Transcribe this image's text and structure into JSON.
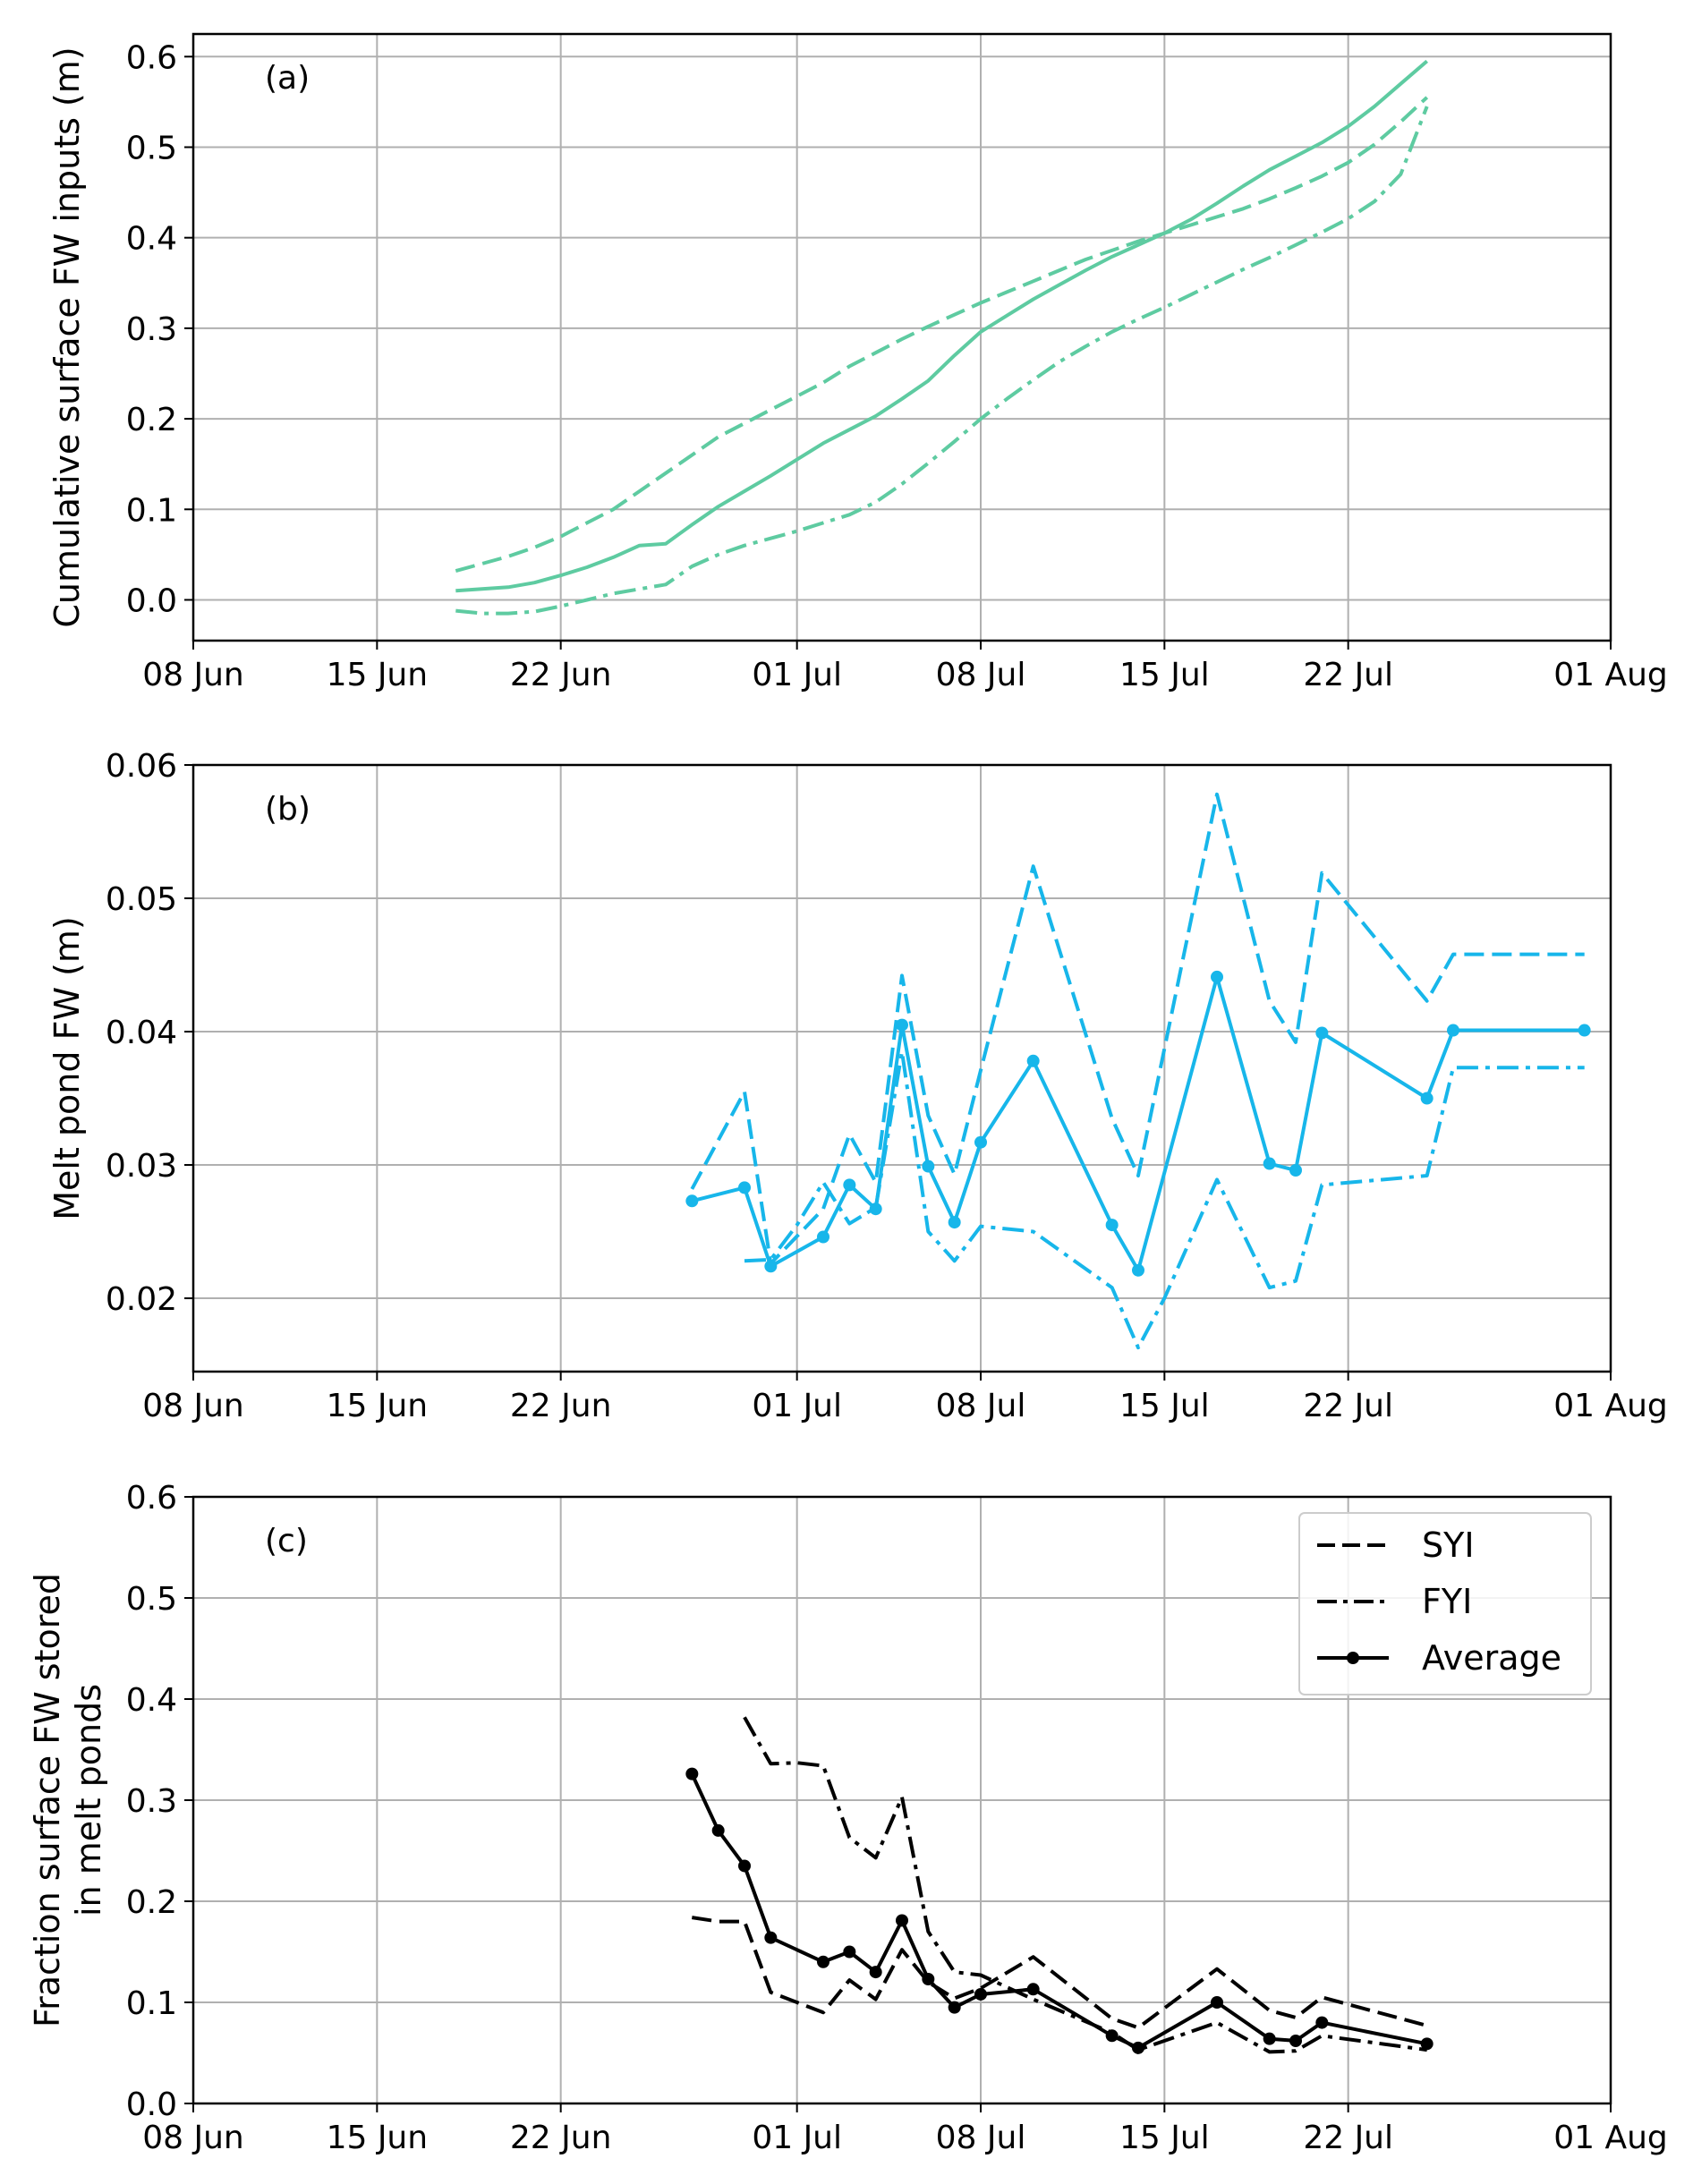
{
  "x_ticks": [
    {
      "date": "2019-06-08",
      "label": "08 Jun"
    },
    {
      "date": "2019-06-15",
      "label": "15 Jun"
    },
    {
      "date": "2019-06-22",
      "label": "22 Jun"
    },
    {
      "date": "2019-07-01",
      "label": "01 Jul"
    },
    {
      "date": "2019-07-08",
      "label": "08 Jul"
    },
    {
      "date": "2019-07-15",
      "label": "15 Jul"
    },
    {
      "date": "2019-07-22",
      "label": "22 Jul"
    },
    {
      "date": "2019-08-01",
      "label": "01 Aug"
    }
  ],
  "colors": {
    "panel_a": "#5ecba1",
    "panel_b": "#17b6ea",
    "panel_c": "#000000",
    "grid": "#b0b0b0"
  },
  "legend": {
    "placement": "top-right",
    "entries": [
      {
        "label": "SYI",
        "style": "dashed"
      },
      {
        "label": "FYI",
        "style": "dashdot"
      },
      {
        "label": "Average",
        "style": "solid-marker"
      }
    ]
  },
  "chart_data": [
    {
      "type": "line",
      "panel_label": "(a)",
      "ylabel": "Cumulative surface FW inputs (m)",
      "xlim": [
        "2019-06-08",
        "2019-08-01"
      ],
      "ylim": [
        -0.045,
        0.625
      ],
      "yticks": [
        0.0,
        0.1,
        0.2,
        0.3,
        0.4,
        0.5,
        0.6
      ],
      "ytick_labels": [
        "0.0",
        "0.1",
        "0.2",
        "0.3",
        "0.4",
        "0.5",
        "0.6"
      ],
      "grid": true,
      "series": [
        {
          "style": "dashed",
          "markers": false,
          "x": [
            "2019-06-18",
            "2019-06-19",
            "2019-06-20",
            "2019-06-21",
            "2019-06-22",
            "2019-06-23",
            "2019-06-24",
            "2019-06-25",
            "2019-06-26",
            "2019-06-27",
            "2019-06-28",
            "2019-06-29",
            "2019-06-30",
            "2019-07-01",
            "2019-07-02",
            "2019-07-03",
            "2019-07-04",
            "2019-07-05",
            "2019-07-06",
            "2019-07-07",
            "2019-07-08",
            "2019-07-09",
            "2019-07-10",
            "2019-07-11",
            "2019-07-12",
            "2019-07-13",
            "2019-07-14",
            "2019-07-15",
            "2019-07-16",
            "2019-07-17",
            "2019-07-18",
            "2019-07-19",
            "2019-07-20",
            "2019-07-21",
            "2019-07-22",
            "2019-07-23",
            "2019-07-24",
            "2019-07-25"
          ],
          "y": [
            0.032,
            0.04,
            0.048,
            0.058,
            0.07,
            0.085,
            0.1,
            0.12,
            0.14,
            0.16,
            0.18,
            0.195,
            0.21,
            0.225,
            0.24,
            0.258,
            0.273,
            0.288,
            0.302,
            0.315,
            0.328,
            0.34,
            0.352,
            0.364,
            0.376,
            0.386,
            0.396,
            0.405,
            0.414,
            0.423,
            0.432,
            0.443,
            0.455,
            0.468,
            0.483,
            0.503,
            0.528,
            0.555
          ]
        },
        {
          "style": "solid",
          "markers": false,
          "x": [
            "2019-06-18",
            "2019-06-19",
            "2019-06-20",
            "2019-06-21",
            "2019-06-22",
            "2019-06-23",
            "2019-06-24",
            "2019-06-25",
            "2019-06-26",
            "2019-06-27",
            "2019-06-28",
            "2019-06-29",
            "2019-06-30",
            "2019-07-01",
            "2019-07-02",
            "2019-07-03",
            "2019-07-04",
            "2019-07-05",
            "2019-07-06",
            "2019-07-07",
            "2019-07-08",
            "2019-07-09",
            "2019-07-10",
            "2019-07-11",
            "2019-07-12",
            "2019-07-13",
            "2019-07-14",
            "2019-07-15",
            "2019-07-16",
            "2019-07-17",
            "2019-07-18",
            "2019-07-19",
            "2019-07-20",
            "2019-07-21",
            "2019-07-22",
            "2019-07-23",
            "2019-07-24",
            "2019-07-25"
          ],
          "y": [
            0.01,
            0.012,
            0.014,
            0.019,
            0.027,
            0.036,
            0.047,
            0.06,
            0.062,
            0.083,
            0.103,
            0.12,
            0.137,
            0.155,
            0.173,
            0.188,
            0.203,
            0.222,
            0.242,
            0.27,
            0.296,
            0.314,
            0.332,
            0.348,
            0.364,
            0.379,
            0.392,
            0.405,
            0.42,
            0.438,
            0.457,
            0.475,
            0.49,
            0.505,
            0.523,
            0.545,
            0.57,
            0.595
          ]
        },
        {
          "style": "dashdot",
          "markers": false,
          "x": [
            "2019-06-18",
            "2019-06-19",
            "2019-06-20",
            "2019-06-21",
            "2019-06-22",
            "2019-06-23",
            "2019-06-24",
            "2019-06-25",
            "2019-06-26",
            "2019-06-27",
            "2019-06-28",
            "2019-06-29",
            "2019-06-30",
            "2019-07-01",
            "2019-07-02",
            "2019-07-03",
            "2019-07-04",
            "2019-07-05",
            "2019-07-06",
            "2019-07-07",
            "2019-07-08",
            "2019-07-09",
            "2019-07-10",
            "2019-07-11",
            "2019-07-12",
            "2019-07-13",
            "2019-07-14",
            "2019-07-15",
            "2019-07-16",
            "2019-07-17",
            "2019-07-18",
            "2019-07-19",
            "2019-07-20",
            "2019-07-21",
            "2019-07-22",
            "2019-07-23",
            "2019-07-24",
            "2019-07-25"
          ],
          "y": [
            -0.012,
            -0.015,
            -0.015,
            -0.013,
            -0.007,
            0.0,
            0.007,
            0.012,
            0.017,
            0.037,
            0.05,
            0.06,
            0.068,
            0.076,
            0.085,
            0.094,
            0.108,
            0.128,
            0.151,
            0.175,
            0.2,
            0.222,
            0.243,
            0.263,
            0.28,
            0.296,
            0.31,
            0.323,
            0.337,
            0.351,
            0.365,
            0.378,
            0.392,
            0.406,
            0.421,
            0.44,
            0.47,
            0.545
          ]
        }
      ]
    },
    {
      "type": "line",
      "panel_label": "(b)",
      "ylabel": "Melt pond FW (m)",
      "xlim": [
        "2019-06-08",
        "2019-08-01"
      ],
      "ylim": [
        0.0145,
        0.06
      ],
      "yticks": [
        0.02,
        0.03,
        0.04,
        0.05,
        0.06
      ],
      "ytick_labels": [
        "0.02",
        "0.03",
        "0.04",
        "0.05",
        "0.06"
      ],
      "grid": true,
      "series": [
        {
          "style": "dashed",
          "markers": false,
          "x": [
            "2019-06-27",
            "2019-06-29",
            "2019-06-30",
            "2019-07-02",
            "2019-07-03",
            "2019-07-04",
            "2019-07-05",
            "2019-07-06",
            "2019-07-07",
            "2019-07-08",
            "2019-07-10",
            "2019-07-13",
            "2019-07-14",
            "2019-07-17",
            "2019-07-19",
            "2019-07-20",
            "2019-07-21",
            "2019-07-25",
            "2019-07-26",
            "2019-07-31"
          ],
          "y": [
            0.0282,
            0.0355,
            0.0226,
            0.0267,
            0.0323,
            0.0287,
            0.0442,
            0.0337,
            0.0293,
            0.0371,
            0.0524,
            0.0335,
            0.0292,
            0.0578,
            0.0423,
            0.0392,
            0.0519,
            0.0423,
            0.0458,
            0.0458
          ]
        },
        {
          "style": "solid",
          "markers": true,
          "x": [
            "2019-06-27",
            "2019-06-29",
            "2019-06-30",
            "2019-07-02",
            "2019-07-03",
            "2019-07-04",
            "2019-07-05",
            "2019-07-06",
            "2019-07-07",
            "2019-07-08",
            "2019-07-10",
            "2019-07-13",
            "2019-07-14",
            "2019-07-17",
            "2019-07-19",
            "2019-07-20",
            "2019-07-21",
            "2019-07-25",
            "2019-07-26",
            "2019-07-31"
          ],
          "y": [
            0.0273,
            0.0283,
            0.0224,
            0.0246,
            0.0285,
            0.0267,
            0.0405,
            0.0299,
            0.0257,
            0.0317,
            0.0378,
            0.0255,
            0.0221,
            0.0441,
            0.0301,
            0.0296,
            0.0399,
            0.035,
            0.0401,
            0.0401
          ]
        },
        {
          "style": "dashdot",
          "markers": false,
          "x": [
            "2019-06-29",
            "2019-06-30",
            "2019-07-01",
            "2019-07-02",
            "2019-07-03",
            "2019-07-04",
            "2019-07-05",
            "2019-07-06",
            "2019-07-07",
            "2019-07-08",
            "2019-07-10",
            "2019-07-13",
            "2019-07-14",
            "2019-07-15",
            "2019-07-17",
            "2019-07-19",
            "2019-07-20",
            "2019-07-21",
            "2019-07-25",
            "2019-07-26",
            "2019-07-31"
          ],
          "y": [
            0.0228,
            0.0229,
            0.0255,
            0.0287,
            0.0256,
            0.0268,
            0.0385,
            0.025,
            0.0228,
            0.0254,
            0.025,
            0.0208,
            0.0163,
            0.02,
            0.0289,
            0.0208,
            0.0213,
            0.0285,
            0.0292,
            0.0373,
            0.0373
          ]
        }
      ]
    },
    {
      "type": "line",
      "panel_label": "(c)",
      "ylabel": [
        "Fraction surface FW stored",
        "in melt ponds"
      ],
      "xlim": [
        "2019-06-08",
        "2019-08-01"
      ],
      "ylim": [
        0.0,
        0.6
      ],
      "yticks": [
        0.0,
        0.1,
        0.2,
        0.3,
        0.4,
        0.5,
        0.6
      ],
      "ytick_labels": [
        "0.0",
        "0.1",
        "0.2",
        "0.3",
        "0.4",
        "0.5",
        "0.6"
      ],
      "grid": true,
      "series": [
        {
          "name": "SYI",
          "style": "dashed",
          "markers": false,
          "x": [
            "2019-06-27",
            "2019-06-28",
            "2019-06-29",
            "2019-06-30",
            "2019-07-02",
            "2019-07-03",
            "2019-07-04",
            "2019-07-05",
            "2019-07-06",
            "2019-07-07",
            "2019-07-08",
            "2019-07-10",
            "2019-07-13",
            "2019-07-14",
            "2019-07-17",
            "2019-07-19",
            "2019-07-20",
            "2019-07-21",
            "2019-07-25"
          ],
          "y": [
            0.184,
            0.18,
            0.18,
            0.11,
            0.09,
            0.122,
            0.103,
            0.152,
            0.12,
            0.104,
            0.114,
            0.145,
            0.084,
            0.075,
            0.133,
            0.092,
            0.085,
            0.105,
            0.077
          ]
        },
        {
          "name": "FYI",
          "style": "dashdot",
          "markers": false,
          "x": [
            "2019-06-29",
            "2019-06-30",
            "2019-07-01",
            "2019-07-02",
            "2019-07-03",
            "2019-07-04",
            "2019-07-05",
            "2019-07-06",
            "2019-07-07",
            "2019-07-08",
            "2019-07-10",
            "2019-07-13",
            "2019-07-14",
            "2019-07-17",
            "2019-07-19",
            "2019-07-20",
            "2019-07-21",
            "2019-07-25"
          ],
          "y": [
            0.382,
            0.336,
            0.337,
            0.334,
            0.263,
            0.243,
            0.303,
            0.17,
            0.13,
            0.127,
            0.103,
            0.07,
            0.053,
            0.08,
            0.051,
            0.052,
            0.067,
            0.053
          ]
        },
        {
          "name": "Average",
          "style": "solid",
          "markers": true,
          "x": [
            "2019-06-27",
            "2019-06-28",
            "2019-06-29",
            "2019-06-30",
            "2019-07-02",
            "2019-07-03",
            "2019-07-04",
            "2019-07-05",
            "2019-07-06",
            "2019-07-07",
            "2019-07-08",
            "2019-07-10",
            "2019-07-13",
            "2019-07-14",
            "2019-07-17",
            "2019-07-19",
            "2019-07-20",
            "2019-07-21",
            "2019-07-25"
          ],
          "y": [
            0.326,
            0.27,
            0.235,
            0.164,
            0.14,
            0.15,
            0.13,
            0.181,
            0.123,
            0.095,
            0.108,
            0.113,
            0.067,
            0.055,
            0.1,
            0.064,
            0.062,
            0.08,
            0.059
          ]
        }
      ]
    }
  ]
}
